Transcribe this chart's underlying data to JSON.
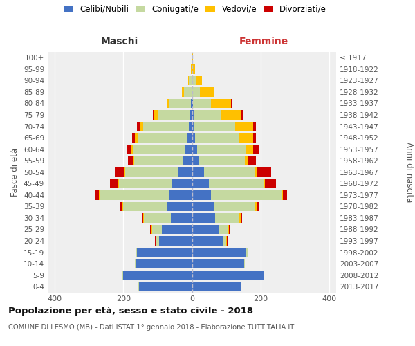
{
  "age_groups": [
    "0-4",
    "5-9",
    "10-14",
    "15-19",
    "20-24",
    "25-29",
    "30-34",
    "35-39",
    "40-44",
    "45-49",
    "50-54",
    "55-59",
    "60-64",
    "65-69",
    "70-74",
    "75-79",
    "80-84",
    "85-89",
    "90-94",
    "95-99",
    "100+"
  ],
  "birth_years": [
    "2013-2017",
    "2008-2012",
    "2003-2007",
    "1998-2002",
    "1993-1997",
    "1988-1992",
    "1983-1987",
    "1978-1982",
    "1973-1977",
    "1968-1972",
    "1963-1967",
    "1958-1962",
    "1953-1957",
    "1948-1952",
    "1943-1947",
    "1938-1942",
    "1933-1937",
    "1928-1932",
    "1923-1927",
    "1918-1922",
    "≤ 1917"
  ],
  "maschi_celibi": [
    155,
    200,
    165,
    160,
    95,
    88,
    62,
    72,
    68,
    58,
    42,
    28,
    22,
    16,
    10,
    7,
    4,
    2,
    1,
    0,
    0
  ],
  "maschi_coniugati": [
    2,
    2,
    2,
    4,
    10,
    28,
    78,
    128,
    200,
    155,
    152,
    140,
    150,
    142,
    132,
    92,
    62,
    22,
    8,
    2,
    1
  ],
  "maschi_vedovi": [
    0,
    0,
    0,
    0,
    1,
    2,
    2,
    2,
    3,
    3,
    3,
    3,
    5,
    8,
    10,
    10,
    8,
    5,
    3,
    1,
    0
  ],
  "maschi_divorziati": [
    0,
    0,
    0,
    0,
    1,
    3,
    5,
    8,
    10,
    22,
    28,
    16,
    12,
    8,
    8,
    4,
    0,
    0,
    0,
    0,
    0
  ],
  "femmine_celibi": [
    142,
    208,
    152,
    158,
    90,
    78,
    68,
    65,
    55,
    50,
    35,
    20,
    16,
    10,
    8,
    5,
    3,
    2,
    1,
    0,
    0
  ],
  "femmine_coniugati": [
    2,
    2,
    2,
    4,
    10,
    28,
    70,
    120,
    205,
    158,
    148,
    135,
    140,
    128,
    118,
    78,
    52,
    22,
    10,
    2,
    1
  ],
  "femmine_vedovi": [
    0,
    0,
    0,
    0,
    2,
    2,
    4,
    4,
    5,
    5,
    5,
    10,
    22,
    40,
    52,
    62,
    58,
    42,
    18,
    8,
    2
  ],
  "femmine_divorziati": [
    0,
    0,
    0,
    0,
    1,
    2,
    4,
    8,
    12,
    32,
    42,
    22,
    18,
    8,
    8,
    4,
    4,
    0,
    0,
    0,
    0
  ],
  "colors": {
    "celibi": "#4472c4",
    "coniugati": "#c5d9a0",
    "vedovi": "#ffc000",
    "divorziati": "#cc0000"
  },
  "title1": "Popolazione per età, sesso e stato civile - 2018",
  "title2": "COMUNE DI LESMO (MB) - Dati ISTAT 1° gennaio 2018 - Elaborazione TUTTITALIA.IT",
  "xlabel_maschi": "Maschi",
  "xlabel_femmine": "Femmine",
  "ylabel_left": "Fasce di età",
  "ylabel_right": "Anni di nascita",
  "xlim": 420,
  "bg_color": "#efefef",
  "legend_labels": [
    "Celibi/Nubili",
    "Coniugati/e",
    "Vedovi/e",
    "Divorziati/e"
  ],
  "xtick_vals": [
    -400,
    -200,
    0,
    200,
    400
  ],
  "xtick_labels": [
    "400",
    "200",
    "0",
    "200",
    "400"
  ]
}
